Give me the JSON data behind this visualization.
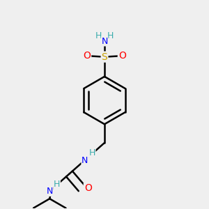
{
  "background_color": "#efefef",
  "atom_colors": {
    "C": "#000000",
    "H": "#3aacac",
    "N": "#0000ff",
    "O": "#ff0000",
    "S": "#c8a000"
  },
  "bond_color": "#000000",
  "bond_width": 1.8
}
